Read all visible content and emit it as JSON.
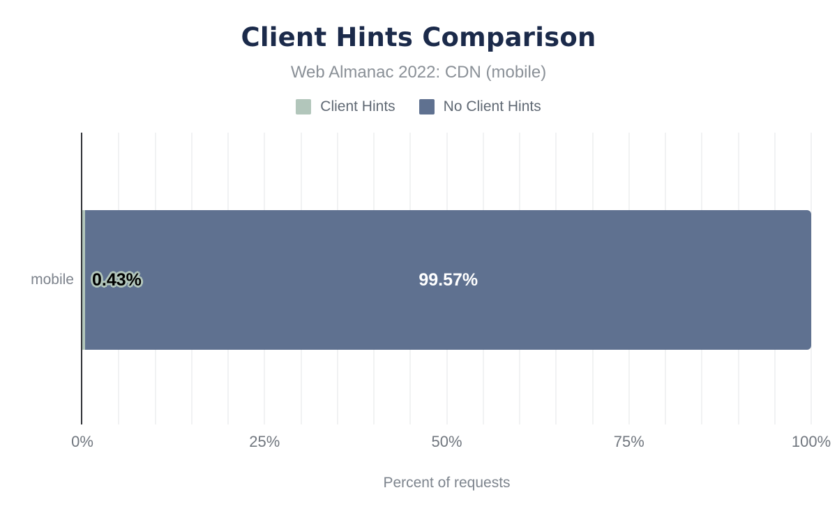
{
  "header": {
    "title": "Client Hints Comparison",
    "subtitle": "Web Almanac 2022: CDN (mobile)"
  },
  "chart_data": {
    "type": "bar",
    "orientation": "horizontal",
    "stacked": true,
    "title": "Client Hints Comparison",
    "subtitle": "Web Almanac 2022: CDN (mobile)",
    "categories": [
      "mobile"
    ],
    "series": [
      {
        "name": "Client Hints",
        "color": "#b2c6bb",
        "values": [
          0.43
        ],
        "labels": [
          "0.43%"
        ]
      },
      {
        "name": "No Client Hints",
        "color": "#5f7190",
        "values": [
          99.57
        ],
        "labels": [
          "99.57%"
        ]
      }
    ],
    "xlabel": "Percent of requests",
    "xlim": [
      0,
      100
    ],
    "xticks": [
      "0%",
      "25%",
      "50%",
      "75%",
      "100%"
    ],
    "grid": "vertical minor gridlines every 5%",
    "legend_position": "top",
    "value_label_outline_color": "#b2c6bb",
    "title_color": "#1b2a4a"
  }
}
